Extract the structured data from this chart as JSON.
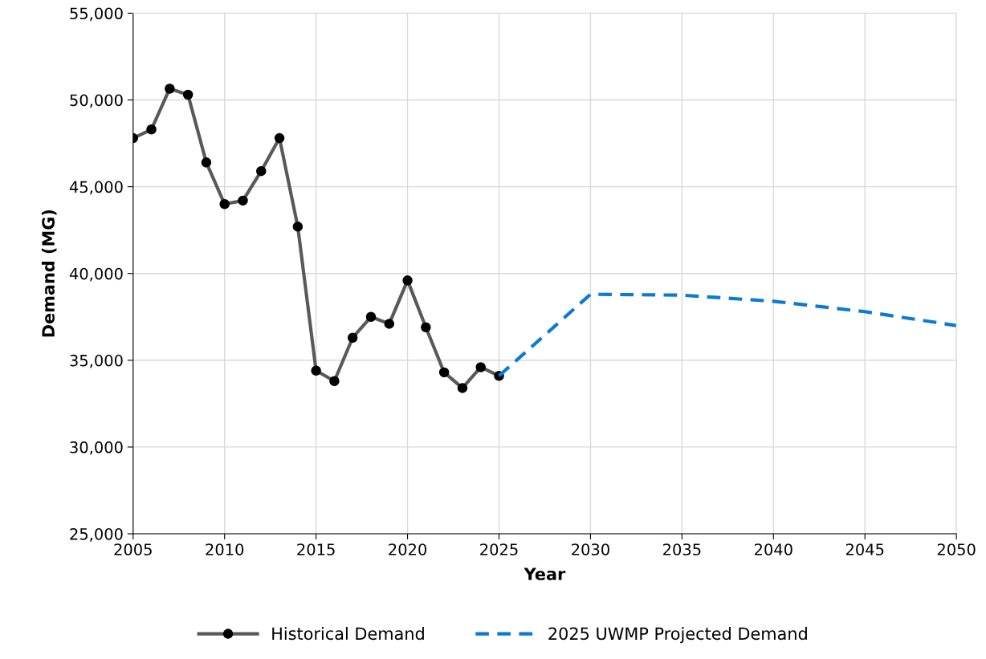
{
  "chart_data": {
    "type": "line",
    "xlabel": "Year",
    "ylabel": "Demand (MG)",
    "xlim": [
      2005,
      2050
    ],
    "xticks": [
      2005,
      2010,
      2015,
      2020,
      2025,
      2030,
      2035,
      2040,
      2045,
      2050
    ],
    "ylim": [
      25000,
      55000
    ],
    "yticks": [
      {
        "value": 25000,
        "label": "25,000"
      },
      {
        "value": 30000,
        "label": "30,000"
      },
      {
        "value": 35000,
        "label": "35,000"
      },
      {
        "value": 40000,
        "label": "40,000"
      },
      {
        "value": 45000,
        "label": "45,000"
      },
      {
        "value": 50000,
        "label": "50,000"
      },
      {
        "value": 55000,
        "label": "55,000"
      }
    ],
    "grid": true,
    "legend": "bottom",
    "series": [
      {
        "name": "Historical Demand",
        "color": "#595959",
        "marker": "circle",
        "line_style": "solid",
        "x": [
          2005,
          2006,
          2007,
          2008,
          2009,
          2010,
          2011,
          2012,
          2013,
          2014,
          2015,
          2016,
          2017,
          2018,
          2019,
          2020,
          2021,
          2022,
          2023,
          2024,
          2025
        ],
        "values": [
          47800,
          48300,
          50650,
          50300,
          46400,
          44000,
          44200,
          45900,
          47800,
          42700,
          34400,
          33800,
          36300,
          37500,
          37100,
          39600,
          36900,
          34300,
          33400,
          34600,
          34100
        ]
      },
      {
        "name": "2025 UWMP Projected Demand",
        "color": "#0a7ad4",
        "marker": "none",
        "line_style": "dashed",
        "x": [
          2025,
          2030,
          2035,
          2040,
          2045,
          2050
        ],
        "values": [
          34100,
          38800,
          38750,
          38400,
          37800,
          37000
        ]
      }
    ]
  }
}
